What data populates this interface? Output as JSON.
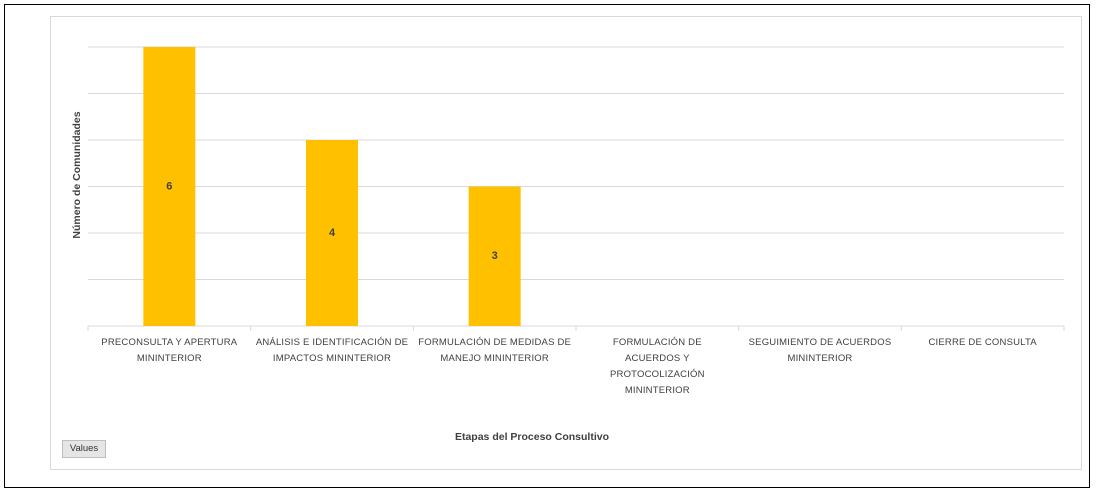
{
  "chart_data": {
    "type": "bar",
    "categories": [
      "PRECONSULTA Y APERTURA MININTERIOR",
      "ANÁLISIS E IDENTIFICACIÓN DE IMPACTOS  MININTERIOR",
      "FORMULACIÓN DE MEDIDAS DE MANEJO MININTERIOR",
      "FORMULACIÓN DE ACUERDOS Y PROTOCOLIZACIÓN MININTERIOR",
      "SEGUIMIENTO DE ACUERDOS MININTERIOR",
      "CIERRE DE CONSULTA"
    ],
    "values": [
      6,
      4,
      3,
      null,
      null,
      null
    ],
    "color": "#ffc000",
    "ylabel": "Número de Comunidades",
    "xlabel": "Etapas del Proceso Consultivo",
    "ylim": [
      0,
      6
    ],
    "yticks": [
      0,
      1,
      2,
      3,
      4,
      5,
      6
    ],
    "grid": true,
    "button": "Values"
  }
}
